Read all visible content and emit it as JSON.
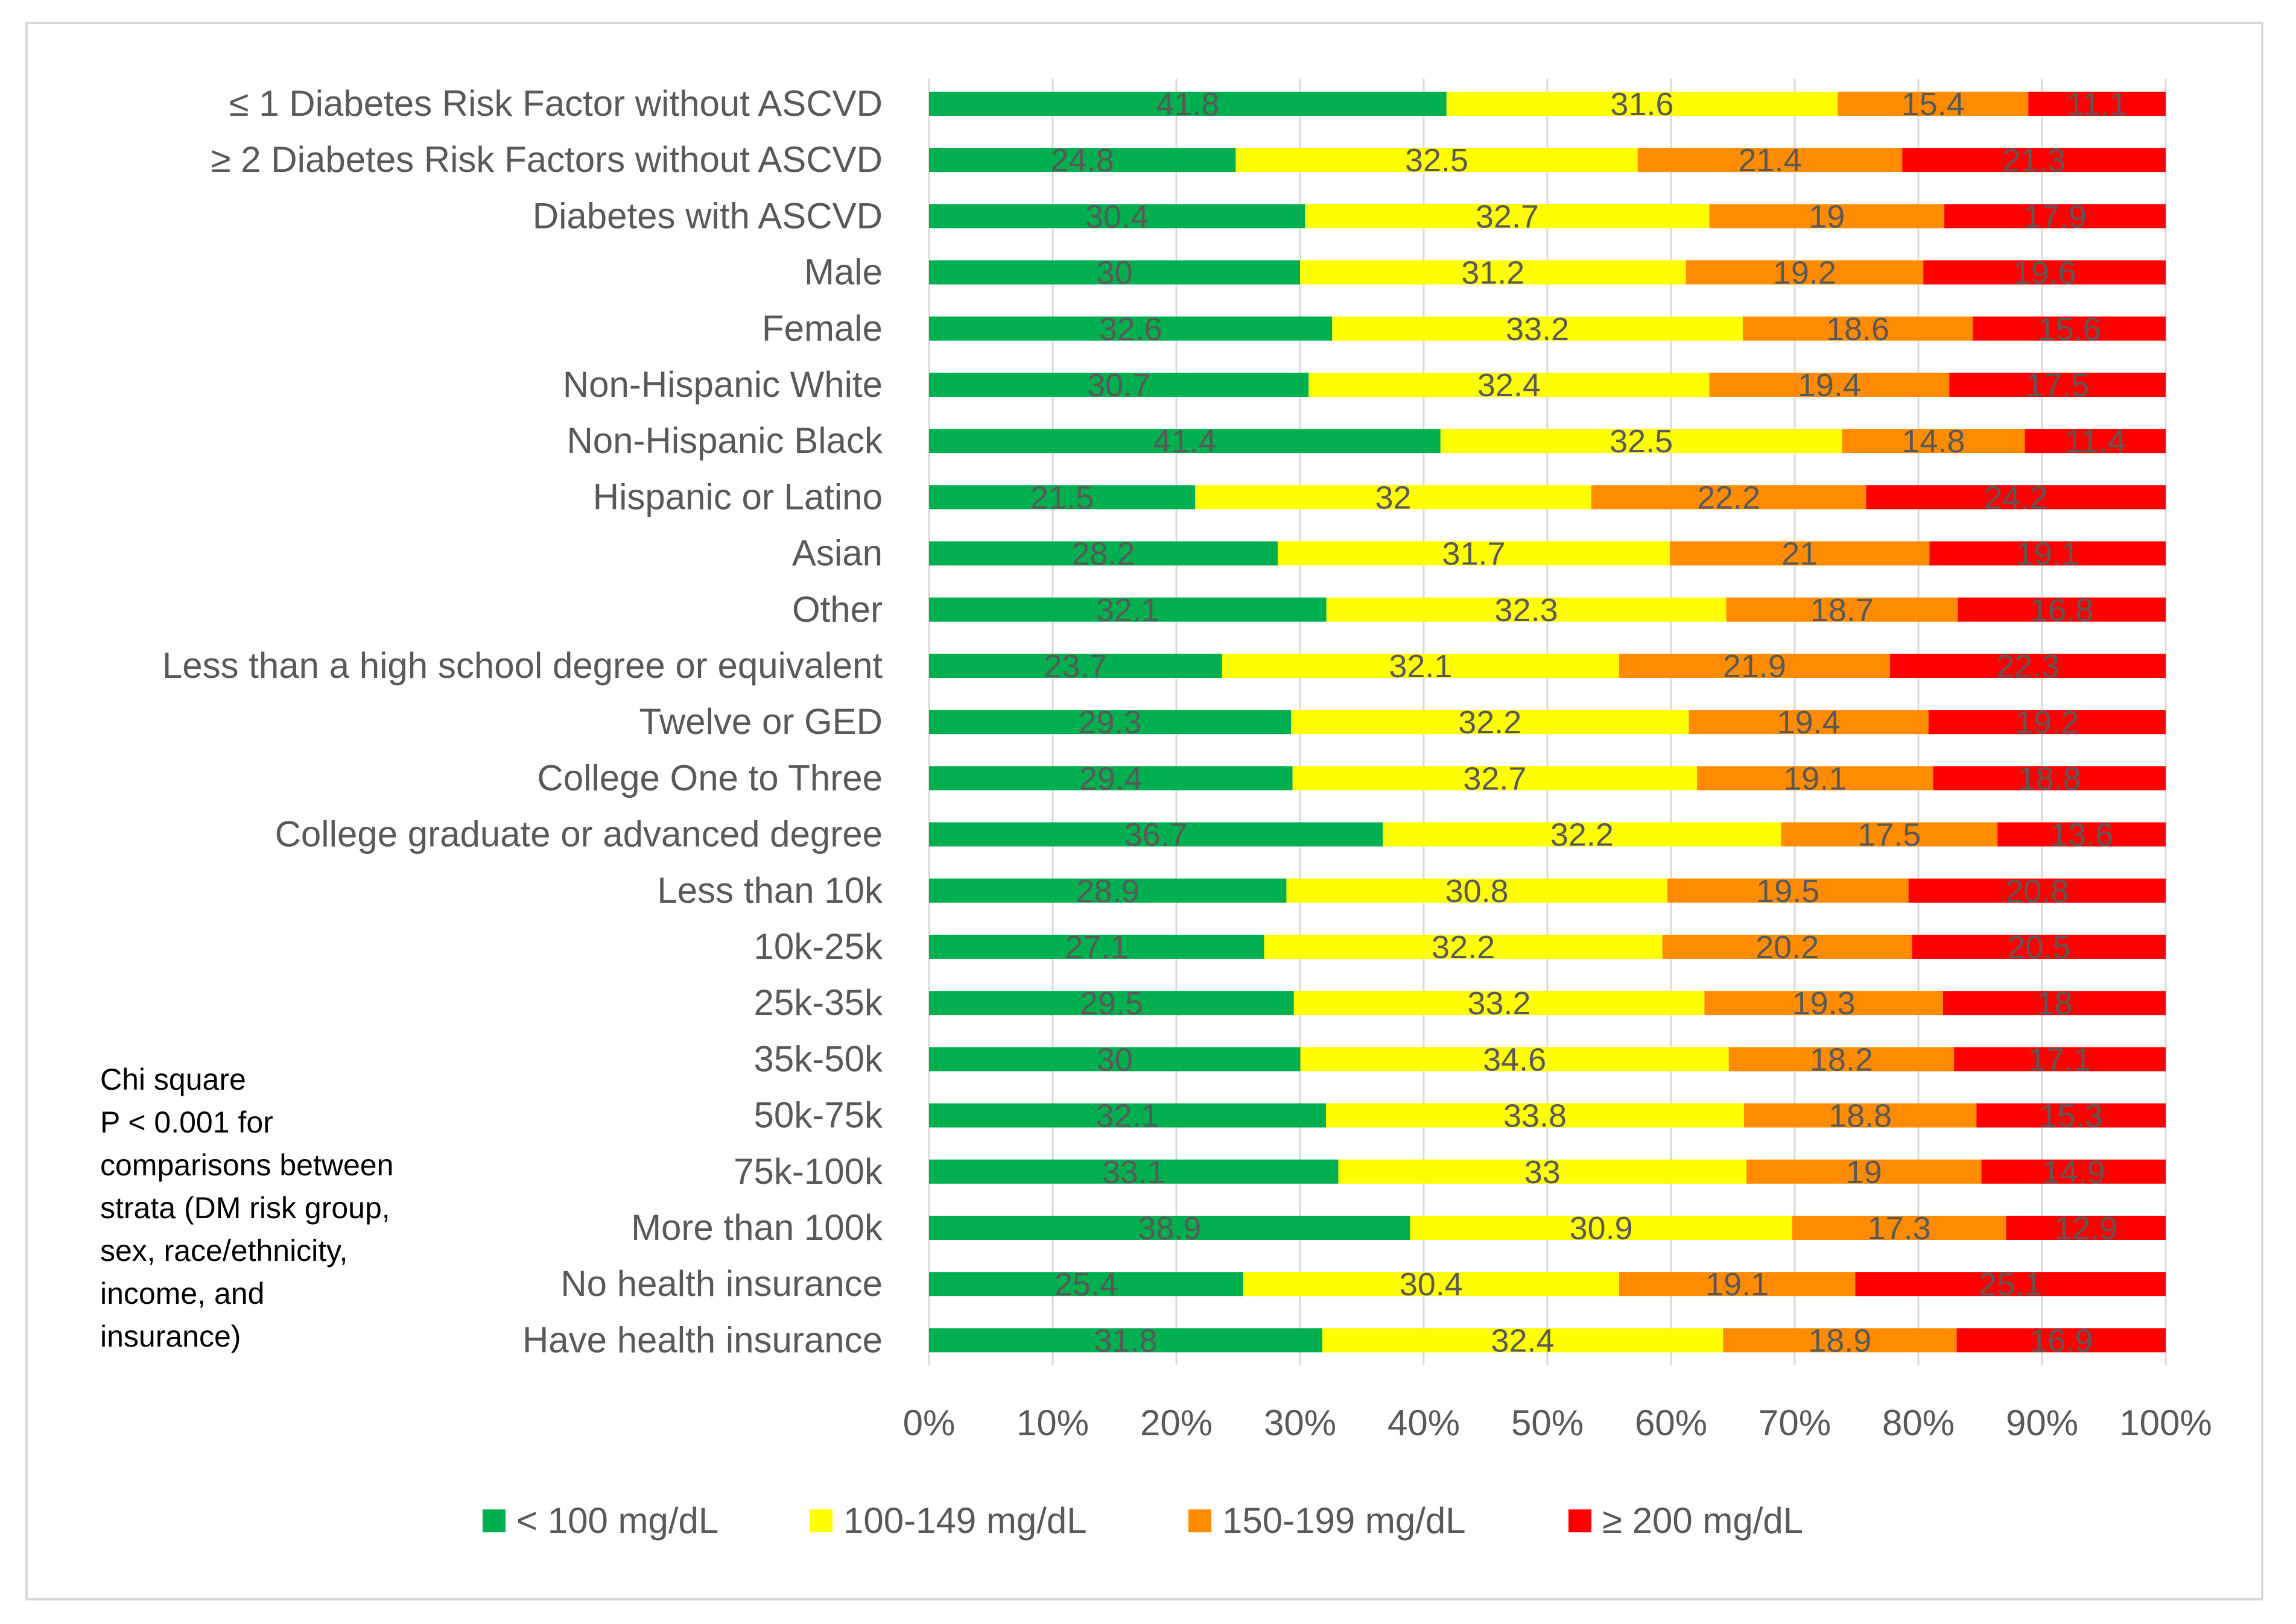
{
  "chart_data": {
    "type": "bar",
    "orientation": "horizontal",
    "stacked": "percent",
    "categories": [
      "≤ 1 Diabetes Risk Factor without ASCVD",
      "≥ 2 Diabetes Risk Factors without ASCVD",
      "Diabetes with ASCVD",
      "Male",
      "Female",
      "Non-Hispanic White",
      "Non-Hispanic Black",
      "Hispanic or Latino",
      "Asian",
      "Other",
      "Less than a high school degree or equivalent",
      "Twelve or GED",
      "College One to Three",
      "College graduate or advanced degree",
      "Less than 10k",
      "10k-25k",
      "25k-35k",
      "35k-50k",
      "50k-75k",
      "75k-100k",
      "More than 100k",
      "No health insurance",
      "Have health insurance"
    ],
    "series": [
      {
        "name": "< 100 mg/dL",
        "color": "#00b050",
        "values": [
          41.8,
          24.8,
          30.4,
          30,
          32.6,
          30.7,
          41.4,
          21.5,
          28.2,
          32.1,
          23.7,
          29.3,
          29.4,
          36.7,
          28.9,
          27.1,
          29.5,
          30,
          32.1,
          33.1,
          38.9,
          25.4,
          31.8
        ]
      },
      {
        "name": "100-149 mg/dL",
        "color": "#ffff00",
        "values": [
          31.6,
          32.5,
          32.7,
          31.2,
          33.2,
          32.4,
          32.5,
          32,
          31.7,
          32.3,
          32.1,
          32.2,
          32.7,
          32.2,
          30.8,
          32.2,
          33.2,
          34.6,
          33.8,
          33,
          30.9,
          30.4,
          32.4
        ]
      },
      {
        "name": "150-199 mg/dL",
        "color": "#ff8c00",
        "values": [
          15.4,
          21.4,
          19,
          19.2,
          18.6,
          19.4,
          14.8,
          22.2,
          21,
          18.7,
          21.9,
          19.4,
          19.1,
          17.5,
          19.5,
          20.2,
          19.3,
          18.2,
          18.8,
          19,
          17.3,
          19.1,
          18.9
        ]
      },
      {
        "name": "≥ 200 mg/dL",
        "color": "#ff0000",
        "values": [
          11.1,
          21.3,
          17.9,
          19.6,
          15.6,
          17.5,
          11.4,
          24.2,
          19.1,
          16.8,
          22.3,
          19.2,
          18.8,
          13.6,
          20.8,
          20.5,
          18,
          17.1,
          15.3,
          14.9,
          12.9,
          25.1,
          16.9
        ]
      }
    ],
    "x_ticks": [
      "0%",
      "10%",
      "20%",
      "30%",
      "40%",
      "50%",
      "60%",
      "70%",
      "80%",
      "90%",
      "100%"
    ],
    "xlim": [
      0,
      100
    ],
    "legend_position": "bottom",
    "title": "",
    "xlabel": "",
    "ylabel": ""
  },
  "annotation": {
    "lines": [
      "Chi square",
      "P < 0.001 for",
      "comparisons between",
      "strata (DM risk group,",
      "sex, race/ethnicity,",
      "income, and",
      "insurance)"
    ]
  }
}
